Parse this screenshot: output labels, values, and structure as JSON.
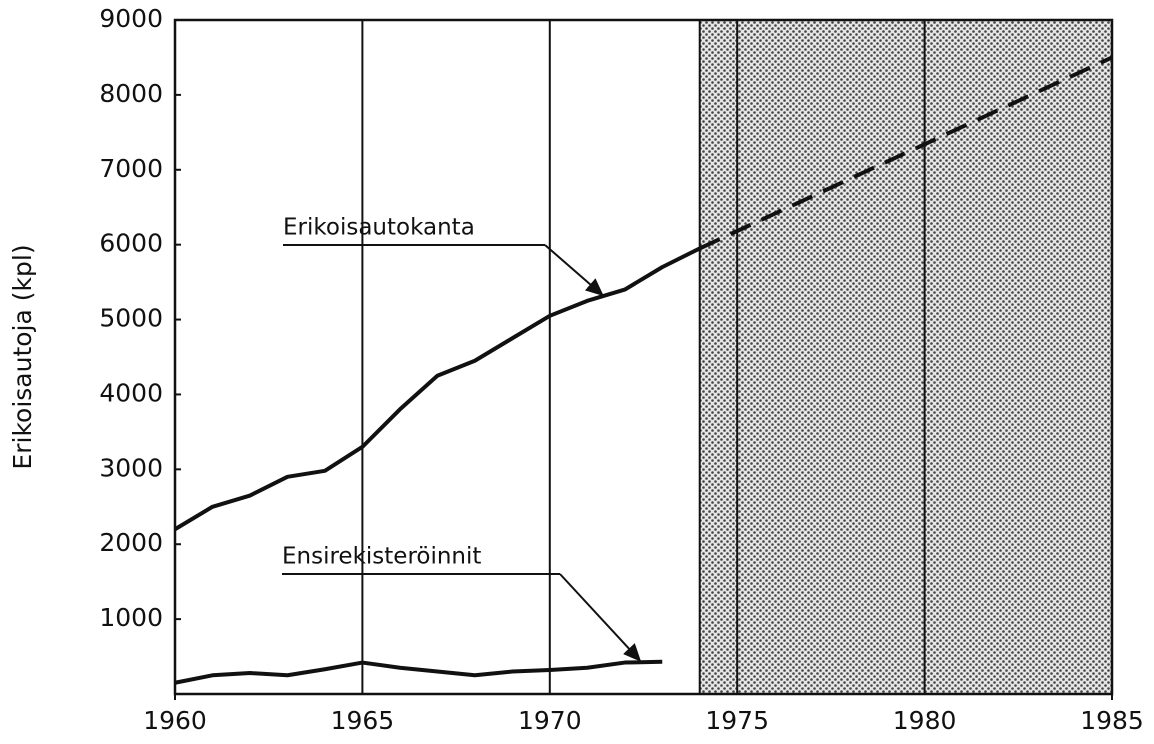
{
  "chart_data": {
    "type": "line",
    "ylabel": "Erikoisautoja (kpl)",
    "xlim": [
      1960,
      1985
    ],
    "xticks": [
      1960,
      1965,
      1970,
      1975,
      1980,
      1985
    ],
    "ylim": [
      0,
      9000
    ],
    "yticks": [
      1000,
      2000,
      3000,
      4000,
      5000,
      6000,
      7000,
      8000,
      9000
    ],
    "grid": "x",
    "shade": [
      1974,
      1985
    ],
    "series": [
      {
        "name": "Erikoisautokanta",
        "color": "#111111",
        "x": [
          1960,
          1961,
          1962,
          1963,
          1964,
          1965,
          1966,
          1967,
          1968,
          1969,
          1970,
          1971,
          1972,
          1973,
          1974
        ],
        "values": [
          2200,
          2500,
          2650,
          2900,
          2980,
          3300,
          3800,
          4250,
          4450,
          4750,
          5050,
          5250,
          5400,
          5700,
          5950
        ]
      },
      {
        "color": "#111111",
        "dashed": true,
        "x": [
          1974,
          1985
        ],
        "values": [
          5950,
          8500
        ]
      },
      {
        "name": "Ensirekisteröinnit",
        "color": "#111111",
        "x": [
          1960,
          1961,
          1962,
          1963,
          1964,
          1965,
          1966,
          1967,
          1968,
          1969,
          1970,
          1971,
          1972,
          1973
        ],
        "values": [
          150,
          250,
          280,
          250,
          330,
          420,
          350,
          300,
          250,
          300,
          320,
          350,
          420,
          430
        ]
      }
    ]
  }
}
